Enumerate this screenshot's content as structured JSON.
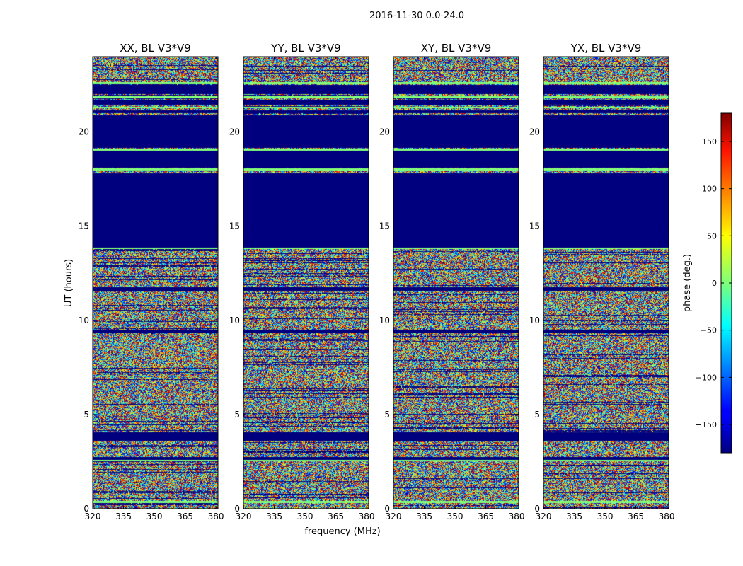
{
  "chart_data": {
    "type": "heatmap",
    "suptitle": "2016-11-30 0.0-24.0",
    "xlabel": "frequency (MHz)",
    "ylabel": "UT (hours)",
    "xlim": [
      320,
      381
    ],
    "ylim": [
      0,
      24
    ],
    "xticks": [
      320,
      335,
      350,
      365,
      380
    ],
    "yticks": [
      0,
      5,
      10,
      15,
      20
    ],
    "panels": [
      {
        "title": "XX, BL V3*V9",
        "pol": "XX"
      },
      {
        "title": "YY, BL V3*V9",
        "pol": "YY"
      },
      {
        "title": "XY, BL V3*V9",
        "pol": "XY"
      },
      {
        "title": "YX, BL V3*V9",
        "pol": "YX"
      }
    ],
    "colormap": "jet",
    "colorbar": {
      "label": "phase (deg.)",
      "range": [
        -180,
        180
      ],
      "ticks": [
        150,
        100,
        50,
        0,
        -50,
        -100,
        -150
      ],
      "tick_labels": [
        "150",
        "100",
        "50",
        "0",
        "−50",
        "−100",
        "−150"
      ]
    },
    "flagged_ranges_hours": [
      [
        13.85,
        17.8
      ],
      [
        18.1,
        19.0
      ],
      [
        19.15,
        20.9
      ],
      [
        21.0,
        21.15
      ],
      [
        21.45,
        21.7
      ],
      [
        22.0,
        22.5
      ],
      [
        11.55,
        11.75
      ],
      [
        9.3,
        9.5
      ],
      [
        3.6,
        4.05
      ],
      [
        2.6,
        2.75
      ]
    ]
  }
}
